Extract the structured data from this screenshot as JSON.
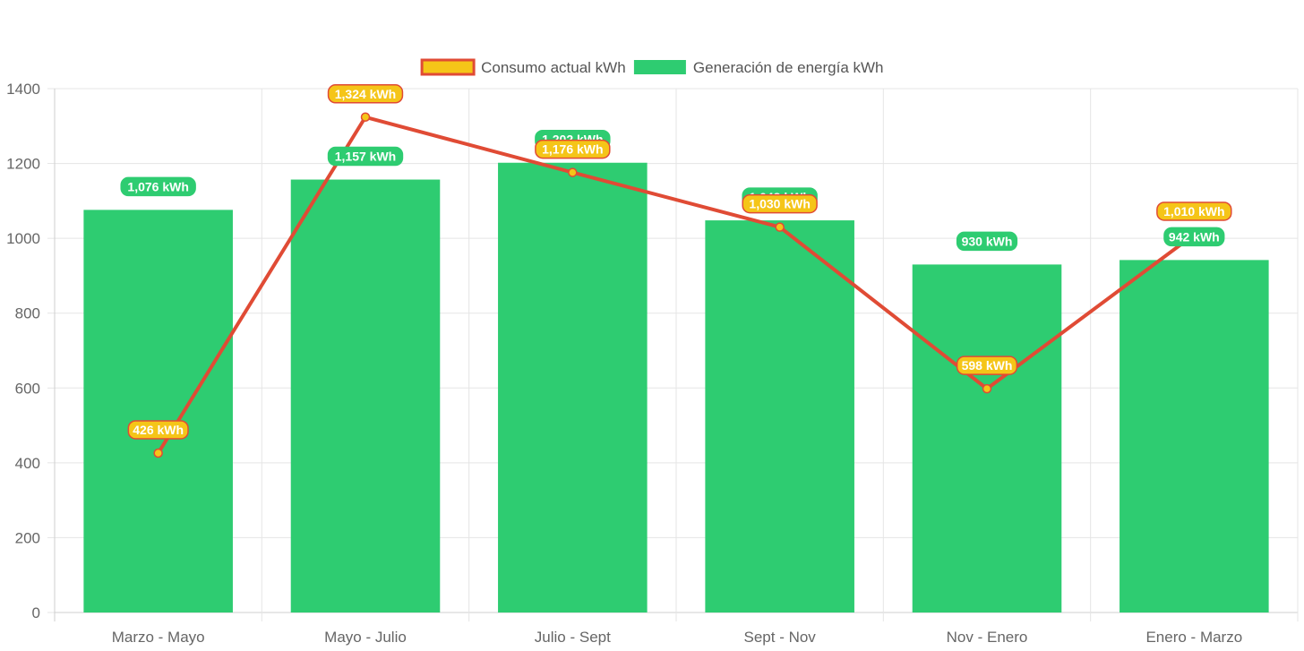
{
  "chart_data": {
    "type": "bar",
    "categories": [
      "Marzo - Mayo",
      "Mayo - Julio",
      "Julio - Sept",
      "Sept - Nov",
      "Nov - Enero",
      "Enero - Marzo"
    ],
    "series": [
      {
        "name": "Consumo actual kWh",
        "chart_type": "line",
        "values": [
          426,
          1324,
          1176,
          1030,
          598,
          1010
        ],
        "labels": [
          "426 kWh",
          "1,324 kWh",
          "1,176 kWh",
          "1,030 kWh",
          "598 kWh",
          "1,010 kWh"
        ],
        "color": "#f5c518",
        "border_color": "#e04b35"
      },
      {
        "name": "Generación de energía kWh",
        "chart_type": "bar",
        "values": [
          1076,
          1157,
          1202,
          1048,
          930,
          942
        ],
        "labels": [
          "1,076 kWh",
          "1,157 kWh",
          "1,202 kWh",
          "1,048 kWh",
          "930 kWh",
          "942 kWh"
        ],
        "color": "#2ecc71"
      }
    ],
    "y_ticks": [
      "0",
      "200",
      "400",
      "600",
      "800",
      "1000",
      "1200",
      "1400"
    ],
    "ylim": [
      0,
      1400
    ],
    "grid": true,
    "legend_position": "top"
  }
}
